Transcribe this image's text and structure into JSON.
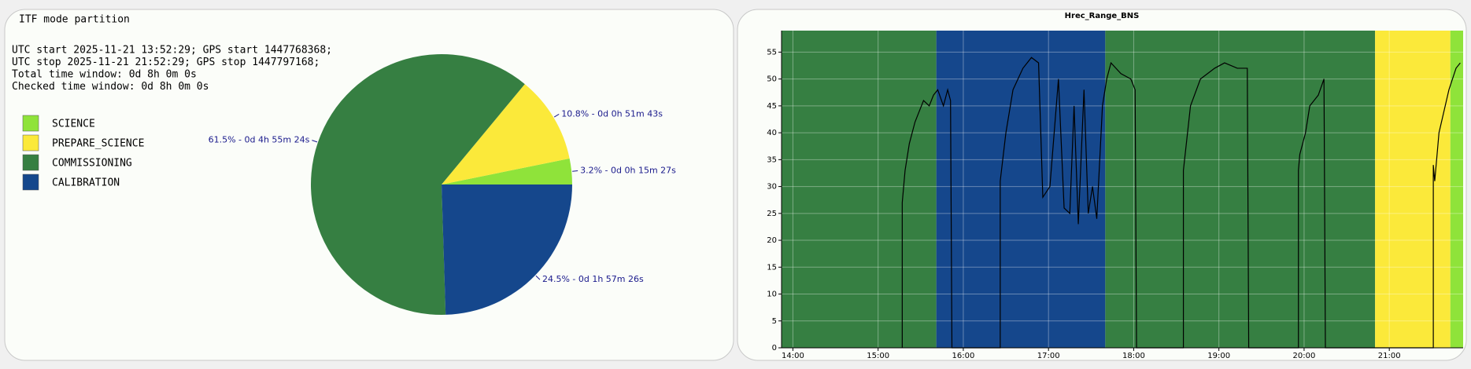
{
  "chart_data": [
    {
      "type": "pie",
      "title": "ITF mode partition",
      "info": [
        "UTC start 2025-11-21 13:52:29; GPS start 1447768368;",
        "UTC stop 2025-11-21 21:52:29; GPS stop 1447797168;",
        "Total time window: 0d 8h 0m 0s",
        "Checked time window: 0d 8h 0m 0s"
      ],
      "categories": [
        "SCIENCE",
        "PREPARE_SCIENCE",
        "COMMISSIONING",
        "CALIBRATION"
      ],
      "values": [
        3.2,
        10.8,
        61.5,
        24.5
      ],
      "value_labels": [
        "3.2% - 0d 0h 15m 27s",
        "10.8% - 0d 0h 51m 43s",
        "61.5% - 0d 4h 55m 24s",
        "24.5% - 0d 1h 57m 26s"
      ],
      "colors": [
        "#8fe33a",
        "#fbe93a",
        "#367f42",
        "#15478c"
      ],
      "legend": "left"
    },
    {
      "type": "line",
      "title": "Hrec_Range_BNS",
      "x": [
        "15:17",
        "15:17",
        "15:19",
        "15:22",
        "15:26",
        "15:29",
        "15:32",
        "15:36",
        "15:39",
        "15:42",
        "15:46",
        "15:49",
        "15:51",
        "15:52",
        "16:26",
        "16:26",
        "16:30",
        "16:35",
        "16:42",
        "16:48",
        "16:53",
        "16:56",
        "17:01",
        "17:07",
        "17:11",
        "17:15",
        "17:18",
        "17:21",
        "17:25",
        "17:28",
        "17:31",
        "17:34",
        "17:38",
        "17:41",
        "17:44",
        "17:51",
        "17:58",
        "18:01",
        "18:02",
        "18:35",
        "18:35",
        "18:40",
        "18:47",
        "18:57",
        "19:04",
        "19:13",
        "19:20",
        "19:21",
        "19:56",
        "19:56",
        "19:57",
        "20:01",
        "20:04",
        "20:10",
        "20:14",
        "20:15",
        "21:31",
        "21:31",
        "21:32",
        "21:35",
        "21:42",
        "21:47",
        "21:50"
      ],
      "values": [
        0,
        27,
        33,
        38,
        42,
        44,
        46,
        45,
        47,
        48,
        45,
        48,
        46,
        0,
        0,
        31,
        40,
        48,
        52,
        54,
        53,
        28,
        30,
        50,
        26,
        25,
        45,
        23,
        48,
        25,
        30,
        24,
        45,
        50,
        53,
        51,
        50,
        48,
        0,
        0,
        33,
        45,
        50,
        52,
        53,
        52,
        52,
        0,
        0,
        33,
        36,
        40,
        45,
        47,
        50,
        0,
        0,
        34,
        31,
        40,
        48,
        52,
        53
      ],
      "color": "#000000",
      "xlim": [
        "13:52",
        "21:52"
      ],
      "xticks": [
        "14:00",
        "15:00",
        "16:00",
        "17:00",
        "18:00",
        "19:00",
        "20:00",
        "21:00"
      ],
      "ylim": [
        0,
        59
      ],
      "yticks": [
        0,
        5,
        10,
        15,
        20,
        25,
        30,
        35,
        40,
        45,
        50,
        55
      ],
      "grid": true,
      "bands": [
        {
          "start": "13:52",
          "end": "15:41",
          "color": "#367f42"
        },
        {
          "start": "15:41",
          "end": "17:40",
          "color": "#15478c"
        },
        {
          "start": "17:40",
          "end": "20:50",
          "color": "#367f42"
        },
        {
          "start": "20:50",
          "end": "21:43",
          "color": "#fbe93a"
        },
        {
          "start": "21:43",
          "end": "21:52",
          "color": "#8fe33a"
        }
      ]
    }
  ]
}
